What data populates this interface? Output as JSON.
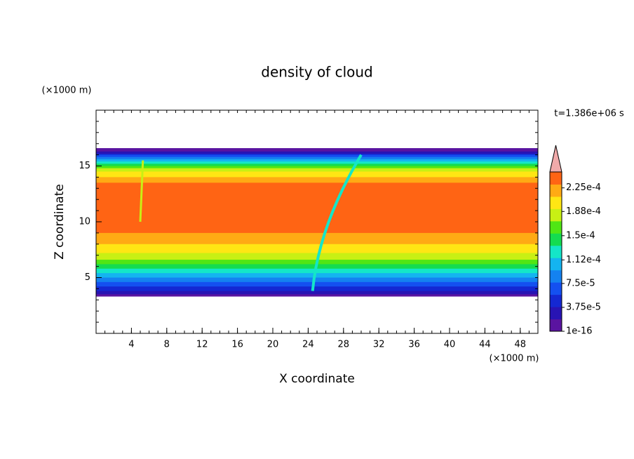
{
  "chart_data": {
    "type": "contour",
    "title": "density of cloud",
    "x_label": "X coordinate",
    "y_label": "Z coordinate",
    "x_unit": "(×1000 m)",
    "y_unit": "(×1000 m)",
    "time_label": "t=1.386e+06 s",
    "xlim": [
      0,
      50
    ],
    "ylim": [
      0,
      20
    ],
    "xticks": [
      4,
      8,
      12,
      16,
      20,
      24,
      28,
      32,
      36,
      40,
      44,
      48
    ],
    "yticks": [
      5,
      10,
      15
    ],
    "colorbar": {
      "range": [
        1e-16,
        0.00025
      ],
      "ticks": [
        {
          "value": 1e-16,
          "label": "1e-16"
        },
        {
          "value": 3.75e-05,
          "label": "3.75e-5"
        },
        {
          "value": 7.5e-05,
          "label": "7.5e-5"
        },
        {
          "value": 0.000112,
          "label": "1.12e-4"
        },
        {
          "value": 0.00015,
          "label": "1.5e-4"
        },
        {
          "value": 0.000188,
          "label": "1.88e-4"
        },
        {
          "value": 0.000225,
          "label": "2.25e-4"
        }
      ],
      "colors": [
        "#5a14a0",
        "#2814b4",
        "#1428d2",
        "#1450f0",
        "#1482f0",
        "#14b4f0",
        "#14e6c8",
        "#14dc50",
        "#50e614",
        "#c8f014",
        "#ffe614",
        "#ffaa14",
        "#ff6414"
      ],
      "extend_color": "#f0aaaa"
    }
  }
}
